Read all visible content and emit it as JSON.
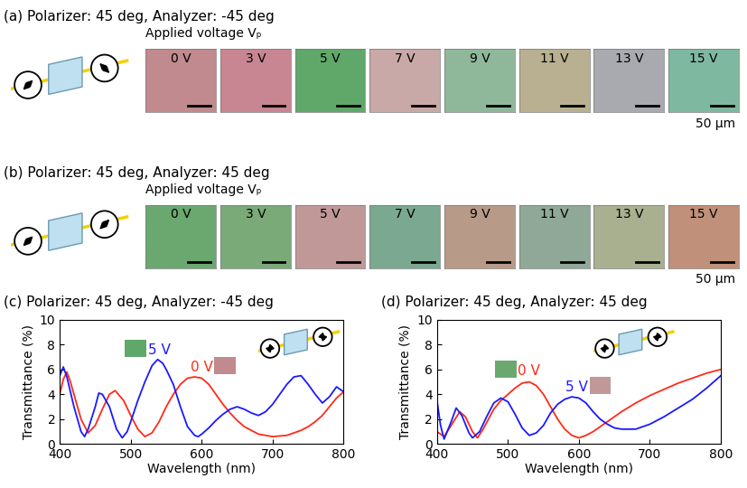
{
  "panels": [
    {
      "title": "(a) Polarizer: 45 deg, Analyzer: -45 deg",
      "subtitle": "Applied voltage Vₚ",
      "scale_bar": "50 µm",
      "tiles": [
        {
          "label": "0 V",
          "color": "#c08a8e"
        },
        {
          "label": "3 V",
          "color": "#c88592"
        },
        {
          "label": "5 V",
          "color": "#5fa86a"
        },
        {
          "label": "7 V",
          "color": "#c9a8a8"
        },
        {
          "label": "9 V",
          "color": "#8fb89a"
        },
        {
          "label": "11 V",
          "color": "#b8b090"
        },
        {
          "label": "13 V",
          "color": "#a8aab0"
        },
        {
          "label": "15 V",
          "color": "#7fb8a0"
        }
      ]
    },
    {
      "title": "(b) Polarizer: 45 deg, Analyzer: 45 deg",
      "subtitle": "Applied voltage Vₚ",
      "scale_bar": "50 µm",
      "tiles": [
        {
          "label": "0 V",
          "color": "#6aa870"
        },
        {
          "label": "3 V",
          "color": "#7aaa78"
        },
        {
          "label": "5 V",
          "color": "#c09898"
        },
        {
          "label": "7 V",
          "color": "#7aa890"
        },
        {
          "label": "9 V",
          "color": "#b89a88"
        },
        {
          "label": "11 V",
          "color": "#90a898"
        },
        {
          "label": "13 V",
          "color": "#a8b090"
        },
        {
          "label": "15 V",
          "color": "#c0907a"
        }
      ]
    }
  ],
  "chart_data": [
    {
      "type": "line",
      "title": "(c) Polarizer: 45 deg, Analyzer: -45 deg",
      "x_label": "Wavelength (nm)",
      "y_label": "Transmittance (%)",
      "xlim": [
        400,
        800
      ],
      "xticks": [
        400,
        500,
        600,
        700,
        800
      ],
      "ylim": [
        0,
        10
      ],
      "yticks": [
        0,
        2,
        4,
        6,
        8,
        10
      ],
      "series": [
        {
          "name": "0 V",
          "color": "#ff2a1a",
          "x": [
            400,
            405,
            410,
            415,
            420,
            430,
            440,
            450,
            460,
            470,
            478,
            490,
            500,
            510,
            520,
            530,
            540,
            550,
            560,
            570,
            580,
            590,
            600,
            610,
            620,
            630,
            640,
            650,
            660,
            670,
            680,
            690,
            700,
            710,
            720,
            730,
            740,
            750,
            760,
            770,
            780,
            790,
            800
          ],
          "values": [
            4.0,
            5.2,
            5.8,
            5.0,
            4.0,
            2.0,
            0.9,
            1.5,
            2.8,
            4.0,
            4.3,
            3.5,
            2.3,
            1.2,
            0.6,
            0.9,
            1.8,
            3.0,
            4.0,
            4.8,
            5.3,
            5.4,
            5.3,
            4.8,
            4.0,
            3.2,
            2.5,
            1.9,
            1.4,
            1.1,
            0.8,
            0.7,
            0.6,
            0.65,
            0.7,
            0.9,
            1.1,
            1.4,
            1.8,
            2.3,
            3.0,
            3.7,
            4.2
          ]
        },
        {
          "name": "5 V",
          "color": "#1a1aff",
          "x": [
            400,
            405,
            410,
            420,
            430,
            435,
            440,
            450,
            455,
            460,
            470,
            480,
            488,
            495,
            500,
            510,
            520,
            530,
            538,
            545,
            550,
            560,
            570,
            580,
            590,
            595,
            600,
            610,
            620,
            630,
            640,
            650,
            660,
            670,
            680,
            690,
            700,
            710,
            720,
            730,
            740,
            750,
            760,
            770,
            780,
            790,
            800
          ],
          "values": [
            5.5,
            6.2,
            5.4,
            3.0,
            1.0,
            0.6,
            1.2,
            3.0,
            4.1,
            4.0,
            3.0,
            1.2,
            0.5,
            1.0,
            1.8,
            3.5,
            5.0,
            6.3,
            6.8,
            6.5,
            6.0,
            4.8,
            3.0,
            1.4,
            0.7,
            0.6,
            0.8,
            1.3,
            1.9,
            2.4,
            2.8,
            3.0,
            2.8,
            2.5,
            2.3,
            2.6,
            3.2,
            4.0,
            4.8,
            5.4,
            5.5,
            4.8,
            4.0,
            3.3,
            3.8,
            4.6,
            4.2
          ]
        }
      ]
    },
    {
      "type": "line",
      "title": "(d) Polarizer: 45 deg, Analyzer: 45 deg",
      "x_label": "Wavelength (nm)",
      "y_label": "Transmittance (%)",
      "xlim": [
        400,
        800
      ],
      "xticks": [
        400,
        500,
        600,
        700,
        800
      ],
      "ylim": [
        0,
        10
      ],
      "yticks": [
        0,
        2,
        4,
        6,
        8,
        10
      ],
      "series": [
        {
          "name": "0 V",
          "color": "#ff2a1a",
          "x": [
            400,
            410,
            420,
            432,
            440,
            450,
            457,
            465,
            480,
            490,
            500,
            510,
            520,
            530,
            540,
            550,
            560,
            570,
            580,
            590,
            600,
            610,
            620,
            630,
            640,
            650,
            660,
            680,
            700,
            720,
            740,
            760,
            780,
            800
          ],
          "values": [
            1.0,
            0.6,
            1.5,
            2.6,
            2.2,
            1.0,
            0.5,
            1.2,
            2.8,
            3.5,
            4.0,
            4.5,
            4.9,
            5.0,
            4.7,
            4.0,
            3.0,
            2.0,
            1.2,
            0.7,
            0.5,
            0.7,
            1.0,
            1.4,
            1.8,
            2.2,
            2.6,
            3.3,
            3.9,
            4.4,
            4.9,
            5.3,
            5.7,
            6.0
          ]
        },
        {
          "name": "5 V",
          "color": "#1a1aff",
          "x": [
            400,
            405,
            410,
            420,
            427,
            435,
            445,
            450,
            460,
            470,
            480,
            490,
            500,
            510,
            520,
            530,
            540,
            550,
            560,
            570,
            580,
            590,
            600,
            610,
            620,
            630,
            640,
            650,
            660,
            680,
            700,
            720,
            740,
            760,
            780,
            800
          ],
          "values": [
            3.5,
            1.5,
            0.4,
            1.8,
            2.9,
            2.3,
            0.9,
            0.5,
            1.0,
            2.2,
            3.3,
            3.7,
            3.4,
            2.4,
            1.3,
            0.7,
            0.9,
            1.5,
            2.5,
            3.2,
            3.6,
            3.8,
            3.7,
            3.3,
            2.6,
            2.0,
            1.6,
            1.3,
            1.2,
            1.2,
            1.6,
            2.2,
            2.9,
            3.6,
            4.5,
            5.5
          ]
        }
      ]
    }
  ]
}
